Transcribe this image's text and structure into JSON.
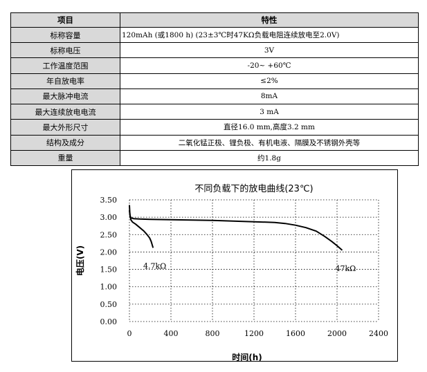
{
  "table": {
    "headers": [
      "项目",
      "特性"
    ],
    "rows": [
      {
        "item": "标称容量",
        "value": "120mAh (或1800 h)  (23±3℃时47KΩ负载电阻连续放电至2.0V)"
      },
      {
        "item": "标称电压",
        "value": "3V"
      },
      {
        "item": "工作温度范围",
        "value": "-20~ +60℃"
      },
      {
        "item": "年自放电率",
        "value": "≤2%"
      },
      {
        "item": "最大脉冲电流",
        "value": "8mA"
      },
      {
        "item": "最大连续放电电流",
        "value": "3  mA"
      },
      {
        "item": "最大外形尺寸",
        "value": "直径16.0 mm,高度3.2 mm"
      },
      {
        "item": "结构及成分",
        "value": "二氧化锰正极、锂负极、有机电液、隔膜及不锈钢外壳等"
      },
      {
        "item": "重量",
        "value": "约1.8g"
      }
    ]
  },
  "chart_data": {
    "type": "line",
    "title": "不同负载下的放电曲线(23℃)",
    "xlabel": "时间(h)",
    "ylabel": "电压(V)",
    "xlim": [
      0,
      2400
    ],
    "ylim": [
      0,
      3.5
    ],
    "xticks": [
      "0",
      "400",
      "800",
      "1200",
      "1600",
      "2000",
      "2400"
    ],
    "yticks": [
      "0.00",
      "0.50",
      "1.00",
      "1.50",
      "2.00",
      "2.50",
      "3.00",
      "3.50"
    ],
    "grid": true,
    "series": [
      {
        "name": "4.7kΩ",
        "x": [
          0,
          3,
          8,
          15,
          30,
          60,
          100,
          140,
          170,
          195,
          210,
          220,
          228
        ],
        "y": [
          3.35,
          3.15,
          3.0,
          2.92,
          2.86,
          2.8,
          2.7,
          2.6,
          2.5,
          2.4,
          2.3,
          2.2,
          2.12
        ]
      },
      {
        "name": "47kΩ",
        "x": [
          0,
          5,
          15,
          40,
          100,
          200,
          400,
          600,
          800,
          1000,
          1200,
          1400,
          1500,
          1600,
          1700,
          1800,
          1880,
          1950,
          2000,
          2050
        ],
        "y": [
          3.2,
          3.05,
          2.98,
          2.96,
          2.95,
          2.94,
          2.93,
          2.92,
          2.91,
          2.89,
          2.87,
          2.85,
          2.82,
          2.77,
          2.7,
          2.6,
          2.45,
          2.3,
          2.18,
          2.05
        ]
      }
    ]
  }
}
